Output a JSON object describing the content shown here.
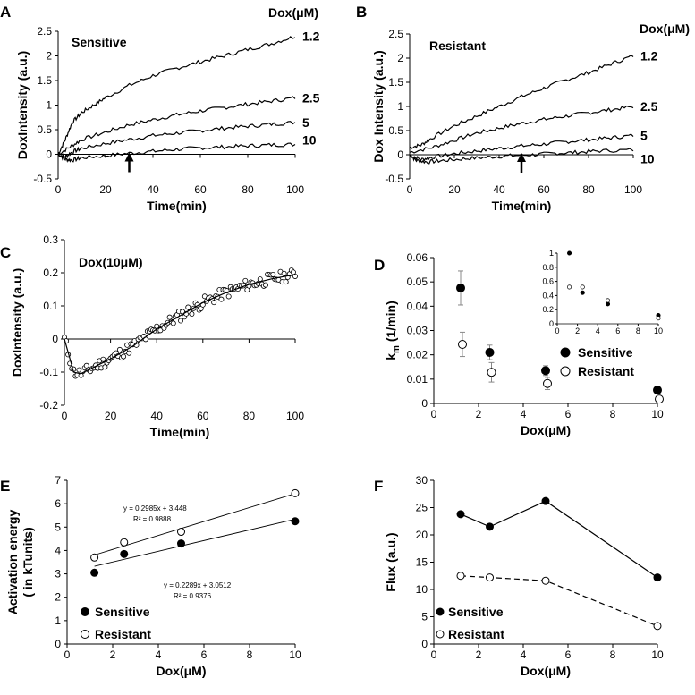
{
  "chart_data": [
    {
      "id": "A",
      "type": "line",
      "panel_letter": "A",
      "title": "Sensitive",
      "legend_title": "Dox(μM)",
      "xlabel": "Time(min)",
      "ylabel": "DoxIntensity (a.u.)",
      "xlim": [
        0,
        100
      ],
      "ylim": [
        -0.5,
        2.5
      ],
      "xticks": [
        0,
        20,
        40,
        60,
        80,
        100
      ],
      "yticks": [
        -0.5,
        0,
        0.5,
        1,
        1.5,
        2,
        2.5
      ],
      "arrow_x": 30,
      "series": [
        {
          "name": "1.2",
          "points": [
            [
              0,
              0
            ],
            [
              3,
              0.3
            ],
            [
              6,
              0.65
            ],
            [
              10,
              0.85
            ],
            [
              15,
              1.0
            ],
            [
              20,
              1.15
            ],
            [
              30,
              1.4
            ],
            [
              40,
              1.6
            ],
            [
              50,
              1.75
            ],
            [
              60,
              1.88
            ],
            [
              70,
              2.0
            ],
            [
              80,
              2.13
            ],
            [
              90,
              2.25
            ],
            [
              100,
              2.4
            ]
          ]
        },
        {
          "name": "2.5",
          "points": [
            [
              0,
              0
            ],
            [
              5,
              0.15
            ],
            [
              10,
              0.3
            ],
            [
              20,
              0.45
            ],
            [
              30,
              0.6
            ],
            [
              40,
              0.7
            ],
            [
              50,
              0.8
            ],
            [
              60,
              0.88
            ],
            [
              70,
              0.95
            ],
            [
              80,
              1.02
            ],
            [
              90,
              1.08
            ],
            [
              100,
              1.15
            ]
          ]
        },
        {
          "name": "5",
          "points": [
            [
              0,
              0
            ],
            [
              3,
              -0.05
            ],
            [
              6,
              0.05
            ],
            [
              10,
              0.12
            ],
            [
              20,
              0.22
            ],
            [
              30,
              0.3
            ],
            [
              40,
              0.38
            ],
            [
              50,
              0.43
            ],
            [
              60,
              0.48
            ],
            [
              70,
              0.53
            ],
            [
              80,
              0.57
            ],
            [
              90,
              0.61
            ],
            [
              100,
              0.65
            ]
          ]
        },
        {
          "name": "10",
          "points": [
            [
              0,
              0
            ],
            [
              3,
              -0.1
            ],
            [
              6,
              -0.12
            ],
            [
              10,
              -0.07
            ],
            [
              20,
              -0.03
            ],
            [
              30,
              0.02
            ],
            [
              40,
              0.06
            ],
            [
              50,
              0.1
            ],
            [
              60,
              0.13
            ],
            [
              70,
              0.15
            ],
            [
              80,
              0.17
            ],
            [
              90,
              0.19
            ],
            [
              100,
              0.2
            ]
          ]
        }
      ]
    },
    {
      "id": "B",
      "type": "line",
      "panel_letter": "B",
      "title": "Resistant",
      "legend_title": "Dox(μM)",
      "xlabel": "Time(min)",
      "ylabel": "Dox Intensity (a.u.)",
      "xlim": [
        0,
        100
      ],
      "ylim": [
        -0.5,
        2.5
      ],
      "xticks": [
        0,
        20,
        40,
        60,
        80,
        100
      ],
      "yticks": [
        -0.5,
        0,
        0.5,
        1,
        1.5,
        2,
        2.5
      ],
      "arrow_x": 50,
      "series": [
        {
          "name": "1.2",
          "points": [
            [
              0,
              0.15
            ],
            [
              5,
              0.2
            ],
            [
              10,
              0.35
            ],
            [
              20,
              0.6
            ],
            [
              30,
              0.8
            ],
            [
              40,
              1.0
            ],
            [
              50,
              1.2
            ],
            [
              60,
              1.38
            ],
            [
              70,
              1.55
            ],
            [
              80,
              1.7
            ],
            [
              90,
              1.88
            ],
            [
              100,
              2.05
            ]
          ]
        },
        {
          "name": "2.5",
          "points": [
            [
              0,
              0.05
            ],
            [
              10,
              0.15
            ],
            [
              20,
              0.3
            ],
            [
              30,
              0.45
            ],
            [
              40,
              0.55
            ],
            [
              50,
              0.65
            ],
            [
              60,
              0.73
            ],
            [
              70,
              0.8
            ],
            [
              80,
              0.87
            ],
            [
              90,
              0.93
            ],
            [
              100,
              1.0
            ]
          ]
        },
        {
          "name": "5",
          "points": [
            [
              0,
              0
            ],
            [
              5,
              -0.1
            ],
            [
              10,
              -0.05
            ],
            [
              20,
              0.02
            ],
            [
              30,
              0.08
            ],
            [
              40,
              0.13
            ],
            [
              50,
              0.18
            ],
            [
              60,
              0.22
            ],
            [
              70,
              0.27
            ],
            [
              80,
              0.31
            ],
            [
              90,
              0.35
            ],
            [
              100,
              0.4
            ]
          ]
        },
        {
          "name": "10",
          "points": [
            [
              0,
              0
            ],
            [
              3,
              -0.12
            ],
            [
              8,
              -0.15
            ],
            [
              15,
              -0.12
            ],
            [
              25,
              -0.08
            ],
            [
              35,
              -0.05
            ],
            [
              45,
              -0.02
            ],
            [
              55,
              0.0
            ],
            [
              65,
              0.03
            ],
            [
              75,
              0.05
            ],
            [
              85,
              0.08
            ],
            [
              100,
              0.1
            ]
          ]
        }
      ]
    },
    {
      "id": "C",
      "type": "scatter",
      "panel_letter": "C",
      "title": "Dox(10μM)",
      "xlabel": "Time(min)",
      "ylabel": "DoxIntensity (a.u.)",
      "xlim": [
        0,
        100
      ],
      "ylim": [
        -0.2,
        0.3
      ],
      "xticks": [
        0,
        20,
        40,
        60,
        80,
        100
      ],
      "yticks": [
        -0.2,
        -0.1,
        0,
        0.1,
        0.2,
        0.3
      ],
      "fit": [
        [
          0,
          0
        ],
        [
          2,
          -0.05
        ],
        [
          4,
          -0.1
        ],
        [
          7,
          -0.105
        ],
        [
          10,
          -0.095
        ],
        [
          20,
          -0.06
        ],
        [
          30,
          -0.02
        ],
        [
          40,
          0.03
        ],
        [
          50,
          0.07
        ],
        [
          60,
          0.11
        ],
        [
          70,
          0.14
        ],
        [
          80,
          0.165
        ],
        [
          90,
          0.182
        ],
        [
          100,
          0.195
        ]
      ]
    },
    {
      "id": "D",
      "type": "scatter",
      "panel_letter": "D",
      "xlabel": "Dox(μM)",
      "ylabel_main": "k",
      "ylabel_sub": "m",
      "ylabel_unit": " (1/min)",
      "xlim": [
        0,
        10
      ],
      "ylim": [
        0,
        0.06
      ],
      "xticks": [
        0,
        2,
        4,
        6,
        8,
        10
      ],
      "yticks": [
        0,
        0.01,
        0.02,
        0.03,
        0.04,
        0.05,
        0.06
      ],
      "legend": [
        "Sensitive",
        "Resistant"
      ],
      "series": [
        {
          "name": "Sensitive",
          "filled": true,
          "x": [
            1.2,
            2.5,
            5,
            10
          ],
          "y": [
            0.0475,
            0.021,
            0.0135,
            0.0055
          ],
          "err": [
            0.007,
            0.003,
            0.002,
            0.001
          ]
        },
        {
          "name": "Resistant",
          "filled": false,
          "x": [
            1.2,
            2.5,
            5,
            10
          ],
          "y": [
            0.0243,
            0.0128,
            0.0082,
            0.0018
          ],
          "err": [
            0.005,
            0.004,
            0.0025,
            0.001
          ]
        }
      ],
      "inset": {
        "xlim": [
          0,
          10
        ],
        "ylim": [
          0,
          1
        ],
        "xticks": [
          0,
          2,
          4,
          6,
          8,
          10
        ],
        "yticks": [
          0,
          0.2,
          0.4,
          0.6,
          0.8,
          1
        ],
        "series": [
          {
            "name": "Sensitive",
            "filled": true,
            "x": [
              1.2,
              2.5,
              5,
              10
            ],
            "y": [
              1.0,
              0.44,
              0.28,
              0.12
            ]
          },
          {
            "name": "Resistant",
            "filled": false,
            "x": [
              1.2,
              2.5,
              5,
              10
            ],
            "y": [
              0.52,
              0.52,
              0.33,
              0.08
            ]
          }
        ]
      }
    },
    {
      "id": "E",
      "type": "scatter",
      "panel_letter": "E",
      "xlabel": "Dox(μM)",
      "ylabel_line1": "Activation energy",
      "ylabel_line2": "( in kTunits)",
      "xlim": [
        0,
        10
      ],
      "ylim": [
        0,
        7
      ],
      "xticks": [
        0,
        2,
        4,
        6,
        8,
        10
      ],
      "yticks": [
        0,
        1,
        2,
        3,
        4,
        5,
        6,
        7
      ],
      "legend": [
        "Sensitive",
        "Resistant"
      ],
      "series": [
        {
          "name": "Sensitive",
          "filled": true,
          "x": [
            1.2,
            2.5,
            5,
            10
          ],
          "y": [
            3.05,
            3.85,
            4.3,
            5.25
          ],
          "fit_slope": 0.2289,
          "fit_intercept": 3.0512,
          "equation": "y = 0.2289x + 3.0512",
          "r2": "R² = 0.9376"
        },
        {
          "name": "Resistant",
          "filled": false,
          "x": [
            1.2,
            2.5,
            5,
            10
          ],
          "y": [
            3.7,
            4.35,
            4.8,
            6.45
          ],
          "fit_slope": 0.2985,
          "fit_intercept": 3.448,
          "equation": "y = 0.2985x + 3.448",
          "r2": "R² = 0.9888"
        }
      ]
    },
    {
      "id": "F",
      "type": "line",
      "panel_letter": "F",
      "xlabel": "Dox(μM)",
      "ylabel": "Flux (a.u.)",
      "xlim": [
        0,
        10
      ],
      "ylim": [
        0,
        30
      ],
      "xticks": [
        0,
        2,
        4,
        6,
        8,
        10
      ],
      "yticks": [
        0,
        5,
        10,
        15,
        20,
        25,
        30
      ],
      "legend": [
        "Sensitive",
        "Resistant"
      ],
      "series": [
        {
          "name": "Sensitive",
          "filled": true,
          "dashed": false,
          "x": [
            1.2,
            2.5,
            5,
            10
          ],
          "y": [
            23.8,
            21.5,
            26.2,
            12.2
          ]
        },
        {
          "name": "Resistant",
          "filled": false,
          "dashed": true,
          "x": [
            1.2,
            2.5,
            5,
            10
          ],
          "y": [
            12.5,
            12.2,
            11.6,
            3.3
          ]
        }
      ]
    }
  ]
}
